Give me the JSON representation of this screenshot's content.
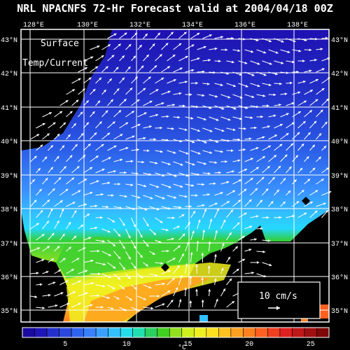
{
  "title": "NRL NPACNFS 72-Hr Forecast valid at 2004/04/18 00Z",
  "panel_label_line1": "Surface",
  "panel_label_line2": "Temp/Current",
  "lon_labels": [
    "128°E",
    "130°E",
    "132°E",
    "134°E",
    "136°E",
    "138°E"
  ],
  "lat_labels": [
    "43°N",
    "42°N",
    "41°N",
    "40°N",
    "39°N",
    "38°N",
    "37°N",
    "36°N",
    "35°N"
  ],
  "legend": {
    "label": "10 cm/s",
    "arrow_symbol": "vector-arrow"
  },
  "colorbar": {
    "tick_labels": [
      "5",
      "10",
      "15",
      "20",
      "25"
    ],
    "unit": "°C",
    "colors": [
      "#1a0aa0",
      "#1f15b8",
      "#2430cc",
      "#2a48de",
      "#2f64ee",
      "#3a80fb",
      "#3aa0ff",
      "#33c0ff",
      "#25dde8",
      "#20e0b0",
      "#2ad060",
      "#40d020",
      "#90e020",
      "#d0f020",
      "#f0f020",
      "#ffe020",
      "#ffc020",
      "#ffa020",
      "#ff8020",
      "#ff6020",
      "#f04020",
      "#e02020",
      "#c01818",
      "#a01010",
      "#800808"
    ]
  },
  "markers": [
    "station-marker",
    "station-marker"
  ],
  "colors": {
    "background": "#000000",
    "land": "#000000",
    "grid": "#ffffff",
    "vectors": "#ffffff"
  }
}
